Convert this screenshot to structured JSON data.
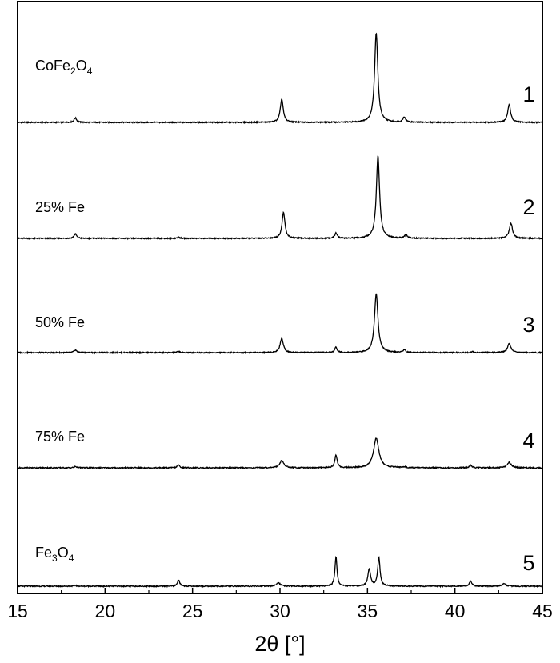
{
  "chart_data": {
    "type": "line",
    "xlabel": "2θ [°]",
    "ylabel": "",
    "xlim": [
      15,
      45
    ],
    "xticks": [
      15,
      20,
      25,
      30,
      35,
      40,
      45
    ],
    "grid": false,
    "legend": "none",
    "line_color": "#000000",
    "series": [
      {
        "label_parts": [
          [
            "CoFe",
            ""
          ],
          [
            "2",
            "sub"
          ],
          [
            "O",
            ""
          ],
          [
            "4",
            "sub"
          ]
        ],
        "number": "1",
        "peaks": [
          [
            18.3,
            0.05,
            0.09
          ],
          [
            30.1,
            0.26,
            0.1
          ],
          [
            33.2,
            0.0,
            0.1
          ],
          [
            35.5,
            1.0,
            0.11
          ],
          [
            37.1,
            0.06,
            0.09
          ],
          [
            43.1,
            0.2,
            0.1
          ]
        ]
      },
      {
        "label_parts": [
          [
            "25% Fe",
            ""
          ]
        ],
        "number": "2",
        "peaks": [
          [
            18.3,
            0.05,
            0.09
          ],
          [
            24.2,
            0.015,
            0.08
          ],
          [
            30.2,
            0.29,
            0.1
          ],
          [
            33.2,
            0.06,
            0.08
          ],
          [
            35.6,
            0.92,
            0.11
          ],
          [
            37.2,
            0.04,
            0.09
          ],
          [
            43.2,
            0.17,
            0.11
          ]
        ]
      },
      {
        "label_parts": [
          [
            "50% Fe",
            ""
          ]
        ],
        "number": "3",
        "peaks": [
          [
            18.3,
            0.03,
            0.09
          ],
          [
            24.2,
            0.015,
            0.08
          ],
          [
            30.1,
            0.16,
            0.11
          ],
          [
            33.2,
            0.06,
            0.08
          ],
          [
            35.5,
            0.66,
            0.12
          ],
          [
            37.1,
            0.03,
            0.09
          ],
          [
            41.0,
            0.01,
            0.08
          ],
          [
            43.1,
            0.1,
            0.12
          ]
        ]
      },
      {
        "label_parts": [
          [
            "75% Fe",
            ""
          ]
        ],
        "number": "4",
        "peaks": [
          [
            18.3,
            0.015,
            0.09
          ],
          [
            24.2,
            0.03,
            0.08
          ],
          [
            30.1,
            0.08,
            0.14
          ],
          [
            33.2,
            0.14,
            0.08
          ],
          [
            35.5,
            0.33,
            0.18
          ],
          [
            37.1,
            0.01,
            0.09
          ],
          [
            40.9,
            0.03,
            0.08
          ],
          [
            43.1,
            0.06,
            0.14
          ]
        ]
      },
      {
        "label_parts": [
          [
            "Fe",
            ""
          ],
          [
            "3",
            "sub"
          ],
          [
            "O",
            ""
          ],
          [
            "4",
            "sub"
          ]
        ],
        "number": "5",
        "peaks": [
          [
            18.3,
            0.01,
            0.09
          ],
          [
            24.2,
            0.07,
            0.08
          ],
          [
            29.9,
            0.04,
            0.12
          ],
          [
            33.2,
            0.33,
            0.07
          ],
          [
            35.1,
            0.19,
            0.09
          ],
          [
            35.65,
            0.32,
            0.08
          ],
          [
            40.9,
            0.06,
            0.08
          ],
          [
            42.8,
            0.03,
            0.12
          ]
        ]
      }
    ]
  }
}
